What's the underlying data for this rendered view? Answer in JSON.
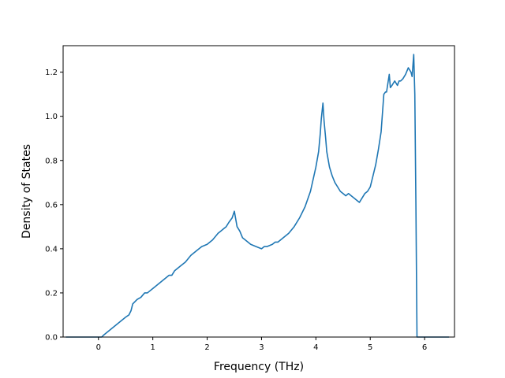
{
  "chart_data": {
    "type": "line",
    "title": "",
    "xlabel": "Frequency (THz)",
    "ylabel": "Density of States",
    "xlim": [
      -0.65,
      6.55
    ],
    "ylim": [
      0.0,
      1.32
    ],
    "xticks": [
      0,
      1,
      2,
      3,
      4,
      5,
      6
    ],
    "yticks": [
      0.0,
      0.2,
      0.4,
      0.6,
      0.8,
      1.0,
      1.2
    ],
    "xtick_labels": [
      "0",
      "1",
      "2",
      "3",
      "4",
      "5",
      "6"
    ],
    "ytick_labels": [
      "0.0",
      "0.2",
      "0.4",
      "0.6",
      "0.8",
      "1.0",
      "1.2"
    ],
    "grid": false,
    "series": [
      {
        "color": "#1f77b4",
        "x": [
          -0.6,
          -0.02,
          0.06,
          0.1,
          0.2,
          0.3,
          0.4,
          0.5,
          0.56,
          0.6,
          0.63,
          0.71,
          0.78,
          0.85,
          0.9,
          1.0,
          1.1,
          1.2,
          1.3,
          1.35,
          1.4,
          1.5,
          1.6,
          1.7,
          1.8,
          1.9,
          2.0,
          2.1,
          2.2,
          2.25,
          2.3,
          2.35,
          2.4,
          2.46,
          2.5,
          2.55,
          2.6,
          2.65,
          2.7,
          2.8,
          2.9,
          3.0,
          3.05,
          3.1,
          3.2,
          3.25,
          3.3,
          3.4,
          3.5,
          3.6,
          3.7,
          3.8,
          3.9,
          4.0,
          4.05,
          4.08,
          4.1,
          4.13,
          4.15,
          4.18,
          4.2,
          4.25,
          4.3,
          4.35,
          4.4,
          4.45,
          4.5,
          4.55,
          4.6,
          4.65,
          4.7,
          4.8,
          4.85,
          4.9,
          4.95,
          5.0,
          5.05,
          5.1,
          5.15,
          5.2,
          5.25,
          5.28,
          5.3,
          5.35,
          5.37,
          5.4,
          5.45,
          5.5,
          5.53,
          5.56,
          5.6,
          5.65,
          5.7,
          5.75,
          5.77,
          5.8,
          5.82,
          5.84,
          5.86,
          5.87,
          6.45
        ],
        "y": [
          0.0,
          0.0,
          0.0,
          0.01,
          0.03,
          0.05,
          0.07,
          0.09,
          0.1,
          0.12,
          0.15,
          0.17,
          0.18,
          0.2,
          0.2,
          0.22,
          0.24,
          0.26,
          0.28,
          0.28,
          0.3,
          0.32,
          0.34,
          0.37,
          0.39,
          0.41,
          0.42,
          0.44,
          0.47,
          0.48,
          0.49,
          0.5,
          0.52,
          0.54,
          0.57,
          0.5,
          0.48,
          0.45,
          0.44,
          0.42,
          0.41,
          0.4,
          0.41,
          0.41,
          0.42,
          0.43,
          0.43,
          0.45,
          0.47,
          0.5,
          0.54,
          0.59,
          0.66,
          0.77,
          0.84,
          0.92,
          0.99,
          1.06,
          0.98,
          0.9,
          0.84,
          0.77,
          0.73,
          0.7,
          0.68,
          0.66,
          0.65,
          0.64,
          0.65,
          0.64,
          0.63,
          0.61,
          0.63,
          0.65,
          0.66,
          0.68,
          0.73,
          0.78,
          0.85,
          0.93,
          1.1,
          1.11,
          1.11,
          1.19,
          1.13,
          1.14,
          1.16,
          1.14,
          1.16,
          1.16,
          1.17,
          1.19,
          1.22,
          1.2,
          1.18,
          1.28,
          1.1,
          0.6,
          0.0,
          0.0,
          0.0
        ]
      }
    ]
  }
}
